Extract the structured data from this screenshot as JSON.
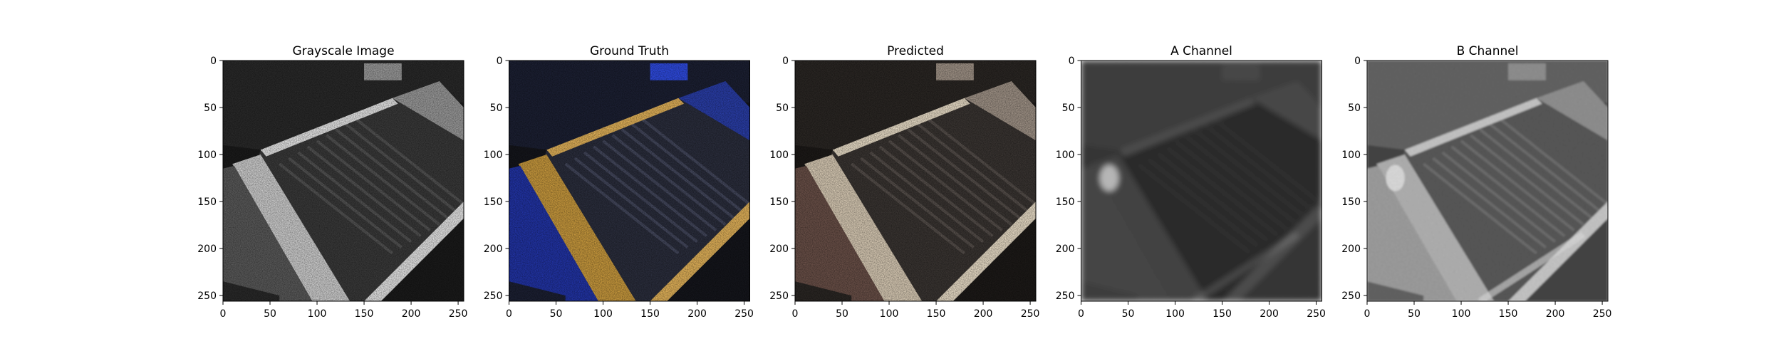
{
  "figure": {
    "colors": {
      "background": "#ffffff",
      "axes": "#000000"
    }
  },
  "chart_data": [
    {
      "type": "image",
      "title": "Grayscale Image",
      "render": "grayscale",
      "xlim": [
        0,
        256
      ],
      "ylim": [
        256,
        0
      ],
      "xticks": [
        0,
        50,
        100,
        150,
        200,
        250
      ],
      "yticks": [
        0,
        50,
        100,
        150,
        200,
        250
      ]
    },
    {
      "type": "image",
      "title": "Ground Truth",
      "render": "color",
      "xlim": [
        0,
        256
      ],
      "ylim": [
        256,
        0
      ],
      "xticks": [
        0,
        50,
        100,
        150,
        200,
        250
      ],
      "yticks": [
        0,
        50,
        100,
        150,
        200,
        250
      ]
    },
    {
      "type": "image",
      "title": "Predicted",
      "render": "muted-color",
      "xlim": [
        0,
        256
      ],
      "ylim": [
        256,
        0
      ],
      "xticks": [
        0,
        50,
        100,
        150,
        200,
        250
      ],
      "yticks": [
        0,
        50,
        100,
        150,
        200,
        250
      ]
    },
    {
      "type": "image",
      "title": "A Channel",
      "render": "channel-dark",
      "xlim": [
        0,
        256
      ],
      "ylim": [
        256,
        0
      ],
      "xticks": [
        0,
        50,
        100,
        150,
        200,
        250
      ],
      "yticks": [
        0,
        50,
        100,
        150,
        200,
        250
      ]
    },
    {
      "type": "image",
      "title": "B Channel",
      "render": "channel-light",
      "xlim": [
        0,
        256
      ],
      "ylim": [
        256,
        0
      ],
      "xticks": [
        0,
        50,
        100,
        150,
        200,
        250
      ],
      "yticks": [
        0,
        50,
        100,
        150,
        200,
        250
      ]
    }
  ]
}
